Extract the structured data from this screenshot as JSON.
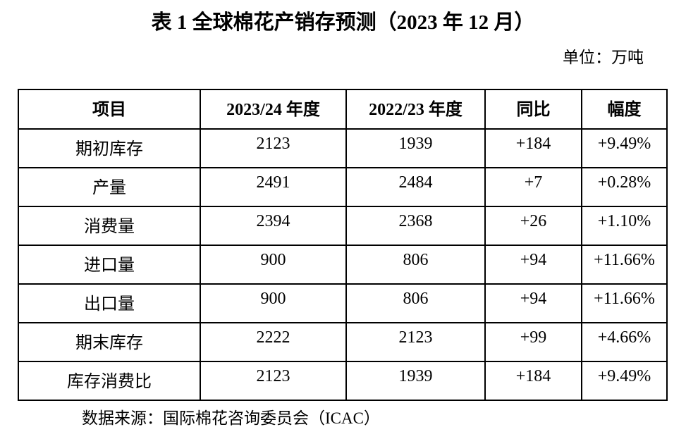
{
  "title": "表 1  全球棉花产销存预测（2023 年 12 月）",
  "unit_label": "单位：万吨",
  "source_label": "数据来源：国际棉花咨询委员会（ICAC）",
  "table": {
    "columns": [
      "项目",
      "2023/24 年度",
      "2022/23 年度",
      "同比",
      "幅度"
    ],
    "rows": [
      [
        "期初库存",
        "2123",
        "1939",
        "+184",
        "+9.49%"
      ],
      [
        "产量",
        "2491",
        "2484",
        "+7",
        "+0.28%"
      ],
      [
        "消费量",
        "2394",
        "2368",
        "+26",
        "+1.10%"
      ],
      [
        "进口量",
        "900",
        "806",
        "+94",
        "+11.66%"
      ],
      [
        "出口量",
        "900",
        "806",
        "+94",
        "+11.66%"
      ],
      [
        "期末库存",
        "2222",
        "2123",
        "+99",
        "+4.66%"
      ],
      [
        "库存消费比",
        "2123",
        "1939",
        "+184",
        "+9.49%"
      ]
    ]
  },
  "colors": {
    "text": "#000000",
    "background": "#ffffff",
    "border": "#000000"
  }
}
